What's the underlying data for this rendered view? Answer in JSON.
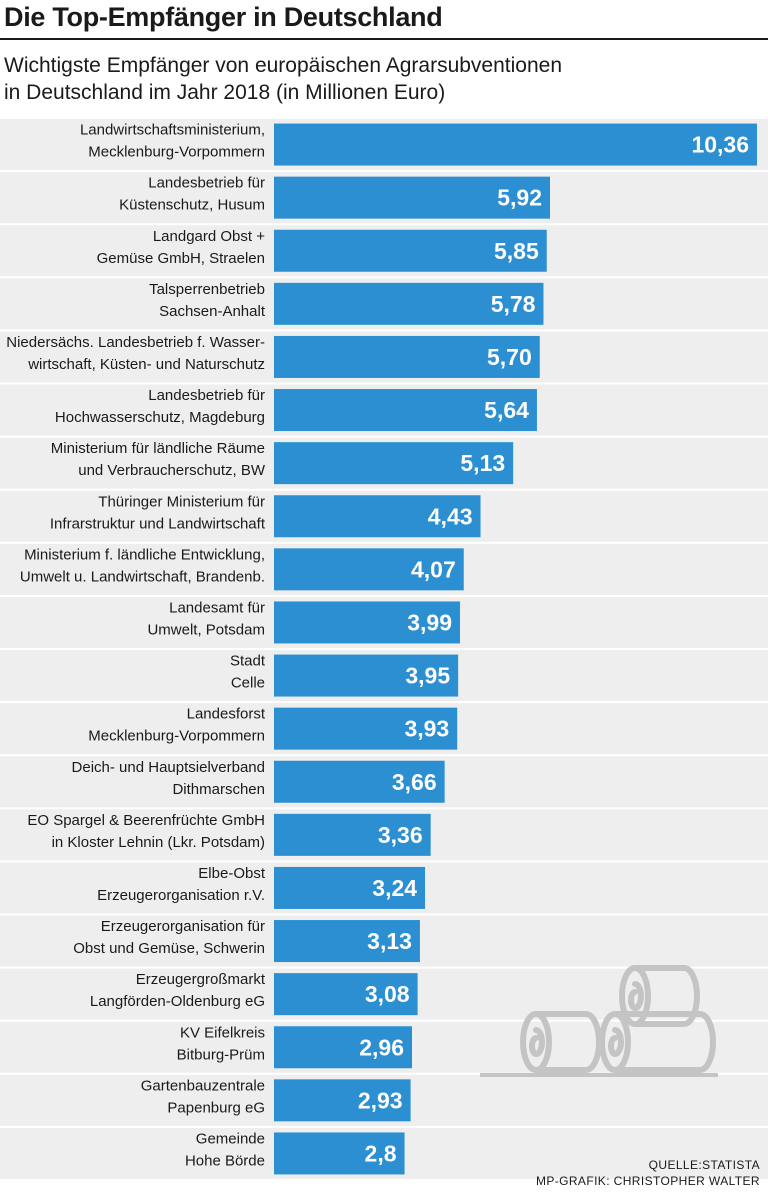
{
  "chart_data": {
    "type": "bar",
    "orientation": "horizontal",
    "title": "Die Top-Empfänger in Deutschland",
    "subtitle_lines": [
      "Wichtigste Empfänger von europäischen Agrarsubventionen",
      "in Deutschland im Jahr 2018 (in Millionen Euro)"
    ],
    "categories": [
      [
        "Landwirtschaftsministerium,",
        "Mecklenburg-Vorpommern"
      ],
      [
        "Landesbetrieb für",
        "Küstenschutz, Husum"
      ],
      [
        "Landgard Obst +",
        "Gemüse GmbH, Straelen"
      ],
      [
        "Talsperrenbetrieb",
        "Sachsen-Anhalt"
      ],
      [
        "Niedersächs. Landesbetrieb f. Wasser-",
        "wirtschaft, Küsten- und Naturschutz"
      ],
      [
        "Landesbetrieb für",
        "Hochwasserschutz, Magdeburg"
      ],
      [
        "Ministerium für ländliche Räume",
        "und Verbraucherschutz, BW"
      ],
      [
        "Thüringer Ministerium für",
        "Infrarstruktur und Landwirtschaft"
      ],
      [
        "Ministerium f. ländliche Entwicklung,",
        "Umwelt u. Landwirtschaft, Brandenb."
      ],
      [
        "Landesamt für",
        "Umwelt, Potsdam"
      ],
      [
        "Stadt",
        "Celle"
      ],
      [
        "Landesforst",
        "Mecklenburg-Vorpommern"
      ],
      [
        "Deich- und Hauptsielverband",
        "Dithmarschen"
      ],
      [
        "EO Spargel & Beerenfrüchte GmbH",
        "in Kloster Lehnin (Lkr. Potsdam)"
      ],
      [
        "Elbe-Obst",
        "Erzeugerorganisation r.V."
      ],
      [
        "Erzeugerorganisation für",
        "Obst und Gemüse, Schwerin"
      ],
      [
        "Erzeugergroßmarkt",
        "Langförden-Oldenburg eG"
      ],
      [
        "KV Eifelkreis",
        "Bitburg-Prüm"
      ],
      [
        "Gartenbauzentrale",
        "Papenburg eG"
      ],
      [
        "Gemeinde",
        "Hohe Börde"
      ]
    ],
    "values": [
      10.36,
      5.92,
      5.85,
      5.78,
      5.7,
      5.64,
      5.13,
      4.43,
      4.07,
      3.99,
      3.95,
      3.93,
      3.66,
      3.36,
      3.24,
      3.13,
      3.08,
      2.96,
      2.93,
      2.8
    ],
    "value_labels": [
      "10,36",
      "5,92",
      "5,85",
      "5,78",
      "5,70",
      "5,64",
      "5,13",
      "4,43",
      "4,07",
      "3,99",
      "3,95",
      "3,93",
      "3,66",
      "3,36",
      "3,24",
      "3,13",
      "3,08",
      "2,96",
      "2,93",
      "2,8"
    ],
    "xlim": [
      0,
      10.36
    ],
    "xlabel": "",
    "ylabel": "",
    "grid": false,
    "bar_color": "#2b8fd1",
    "row_stripe_color": "#eeeeee"
  },
  "source": {
    "line1": "QUELLE:STATISTA",
    "line2": "MP-GRAFIK: CHRISTOPHER WALTER"
  },
  "colors": {
    "bar": "#2b8fd1",
    "stripe": "#eeeeee",
    "illustration": "#c4c4c4"
  },
  "icons": {
    "illustration": "hay-bales-icon"
  }
}
